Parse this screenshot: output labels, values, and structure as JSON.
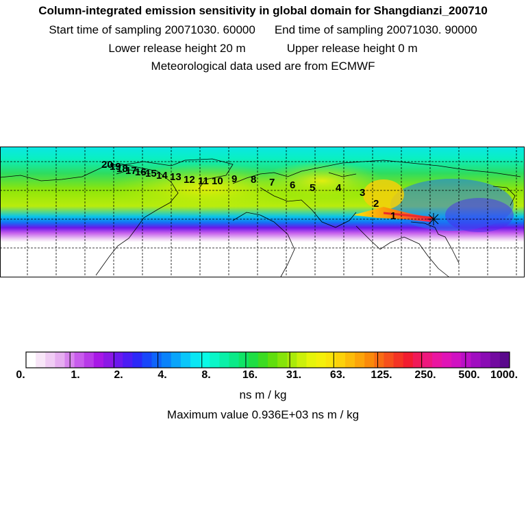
{
  "header": {
    "title": "Column-integrated emission sensitivity in global domain for Shangdianzi_200710",
    "start_time": "Start time of sampling 20071030. 60000",
    "end_time": "End time of sampling 20071030. 90000",
    "lower_height": "Lower release height   20 m",
    "upper_height": "Upper release height    0 m",
    "met_data": "Meteorological data used are from ECMWF"
  },
  "map": {
    "station": "Shangdianzi",
    "trajectory_labels": [
      "1",
      "2",
      "3",
      "4",
      "5",
      "6",
      "7",
      "8",
      "9",
      "10",
      "11",
      "12",
      "13",
      "14",
      "15",
      "16",
      "17",
      "18",
      "19",
      "20"
    ]
  },
  "colorbar": {
    "tick_labels": [
      "0.",
      "1.",
      "2.",
      "4.",
      "8.",
      "16.",
      "31.",
      "63.",
      "125.",
      "250.",
      "500.",
      "1000."
    ],
    "units": "ns m / kg",
    "max_value_text": "Maximum value  0.936E+03 ns m / kg",
    "colors": [
      "#ffffff",
      "#f8e6f8",
      "#f0ccf4",
      "#e6aef0",
      "#d884ee",
      "#c85cec",
      "#b83ae8",
      "#a818e6",
      "#8c18e6",
      "#6c18ee",
      "#4c1cf4",
      "#2c28f8",
      "#1846fa",
      "#0e64fa",
      "#0a82fa",
      "#0aa4fa",
      "#0ac6fa",
      "#0ae6f4",
      "#0afae6",
      "#0af6c8",
      "#0af0a8",
      "#0aea88",
      "#10e466",
      "#1ede44",
      "#3cdc22",
      "#60de0e",
      "#86e40a",
      "#aaea0a",
      "#ccf00a",
      "#e6f40a",
      "#f4f00a",
      "#fae40a",
      "#fcd20a",
      "#fcbc0a",
      "#fca40a",
      "#fa8a0a",
      "#f86c14",
      "#f6501c",
      "#f43424",
      "#f21c30",
      "#f01a58",
      "#ee187e",
      "#ea16a0",
      "#e014b6",
      "#d012c2",
      "#ba10c6",
      "#a00ec0",
      "#8a0cb4",
      "#720aa0",
      "#5a088c"
    ]
  }
}
